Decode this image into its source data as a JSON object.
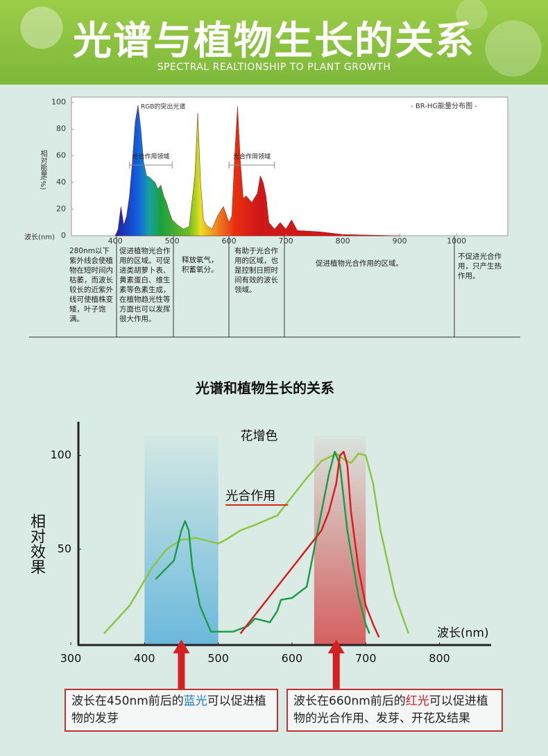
{
  "header": {
    "title": "光谱与植物生长的关系",
    "subtitle": "SPECTRAL REALTIONSHIP TO PLANT GROWTH"
  },
  "chart_data": [
    {
      "type": "area",
      "ylabel": "相对能量(%)",
      "xlabel": "波长(nm)",
      "legend_note": "- BR-HG能量分布图 -",
      "peak_note": "RGB的突出光谱",
      "regions": [
        {
          "label": "光合作用领域",
          "x": [
            425,
            500
          ]
        },
        {
          "label": "光合作用领域",
          "x": [
            600,
            680
          ]
        }
      ],
      "x": [
        400,
        405,
        410,
        415,
        420,
        425,
        430,
        435,
        440,
        445,
        450,
        455,
        460,
        465,
        470,
        475,
        480,
        485,
        490,
        495,
        500,
        510,
        520,
        530,
        540,
        545,
        550,
        555,
        560,
        570,
        580,
        590,
        600,
        605,
        610,
        615,
        620,
        625,
        630,
        640,
        650,
        655,
        660,
        665,
        670,
        680,
        690,
        700,
        710,
        720,
        760,
        800,
        850,
        900
      ],
      "values": [
        0,
        5,
        22,
        8,
        15,
        30,
        55,
        85,
        98,
        80,
        55,
        45,
        44,
        42,
        40,
        35,
        38,
        30,
        25,
        18,
        12,
        8,
        5,
        7,
        45,
        92,
        40,
        12,
        8,
        5,
        15,
        22,
        10,
        15,
        60,
        97,
        55,
        28,
        30,
        25,
        32,
        45,
        40,
        30,
        10,
        5,
        10,
        5,
        12,
        4,
        3,
        1,
        0.5,
        0
      ],
      "fill_stops": [
        {
          "x": 410,
          "color": "#1a2fb0"
        },
        {
          "x": 440,
          "color": "#1060e0"
        },
        {
          "x": 460,
          "color": "#18a0a0"
        },
        {
          "x": 480,
          "color": "#1aa040"
        },
        {
          "x": 530,
          "color": "#6cc020"
        },
        {
          "x": 550,
          "color": "#e8e020"
        },
        {
          "x": 580,
          "color": "#f08020"
        },
        {
          "x": 610,
          "color": "#e83010"
        },
        {
          "x": 650,
          "color": "#d01818"
        }
      ],
      "xlim": [
        323,
        1090
      ],
      "ylim": [
        0,
        104
      ],
      "xticks": [
        400,
        500,
        600,
        700,
        800,
        900,
        1000
      ],
      "yticks": [
        0,
        20,
        40,
        60,
        80,
        100
      ]
    },
    {
      "type": "line",
      "title": "光谱和植物生长的关系",
      "ylabel": "相对效果",
      "xlabel": "波长(nm)",
      "bands": [
        {
          "x": [
            400,
            500
          ],
          "color": "#6ab8dc"
        },
        {
          "x": [
            630,
            700
          ],
          "color": "#d46060"
        }
      ],
      "annotations": [
        {
          "text": "花增色",
          "x": 530,
          "y": 110
        },
        {
          "text": "光合作用",
          "x": 510,
          "y": 78
        }
      ],
      "series": [
        {
          "color": "#8cc63f",
          "x": [
            345,
            380,
            410,
            430,
            450,
            470,
            500,
            510,
            530,
            550,
            580,
            600,
            620,
            640,
            660,
            670,
            680,
            690,
            700,
            710,
            720,
            740,
            758
          ],
          "values": [
            5,
            20,
            40,
            50,
            55,
            56,
            53,
            55,
            60,
            63,
            68,
            78,
            88,
            97,
            101,
            98,
            96,
            101,
            100,
            85,
            60,
            25,
            5
          ]
        },
        {
          "color": "#1e9c4a",
          "x": [
            415,
            440,
            450,
            455,
            460,
            465,
            475,
            490,
            520,
            540,
            550,
            560,
            570,
            580,
            585,
            600,
            620,
            630,
            640,
            650,
            658,
            665,
            675,
            690,
            700,
            705
          ],
          "values": [
            34,
            44,
            60,
            65,
            60,
            40,
            20,
            6,
            6,
            9,
            13,
            12,
            11,
            17,
            23,
            24,
            30,
            50,
            70,
            90,
            102,
            95,
            60,
            25,
            10,
            5
          ]
        },
        {
          "color": "#d42020",
          "x": [
            530,
            560,
            590,
            620,
            640,
            650,
            660,
            665,
            670,
            675,
            680,
            690,
            700,
            710,
            718
          ],
          "values": [
            5,
            20,
            35,
            50,
            60,
            70,
            85,
            100,
            102,
            95,
            70,
            40,
            20,
            10,
            3
          ]
        }
      ],
      "xlim": [
        300,
        870
      ],
      "ylim": [
        0,
        118
      ],
      "xticks": [
        300,
        400,
        500,
        600,
        700,
        800
      ],
      "yticks": [
        50,
        100
      ]
    }
  ],
  "spectrum_notes": [
    "280nm以下紫外线会使植物在短时间内枯萎，而波长较长的近紫外线可使植株变矮，叶子饱满。",
    "促进植物光合作用的区域。可促进类胡萝卜表、黄素蛋白、维生素等色素生成，在植物趋光性等方面也可以发挥很大作用。",
    "释放氧气，积蓄氧分。",
    "有助于光合作用的区域，也是控制日照时间有效的波长领域。",
    "促进植物光合作用的区域。",
    "不促进光合作用，只产生热作用。"
  ],
  "callouts": [
    {
      "x": 450,
      "parts": [
        {
          "text": "波长在450nm前后的",
          "color": "#222222"
        },
        {
          "text": "蓝光",
          "color": "#1a7fc0"
        },
        {
          "text": "可以促进植物的发芽",
          "color": "#222222"
        }
      ]
    },
    {
      "x": 660,
      "parts": [
        {
          "text": "波长在660nm前后的",
          "color": "#222222"
        },
        {
          "text": "红光",
          "color": "#d42020"
        },
        {
          "text": "可以促进植物的光合作用、发芽、开花及结果",
          "color": "#222222"
        }
      ]
    }
  ]
}
